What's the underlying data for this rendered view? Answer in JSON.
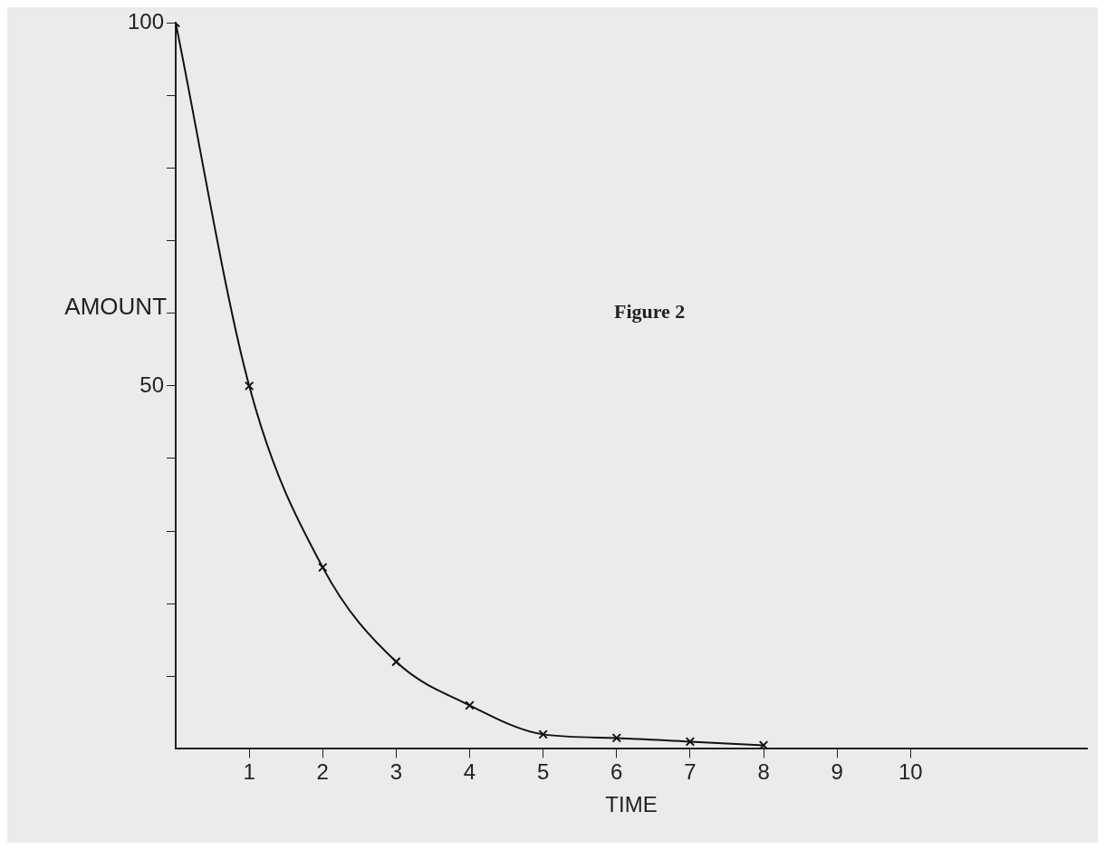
{
  "chart_data": {
    "type": "line",
    "xlabel": "TIME",
    "ylabel": "AMOUNT",
    "annotations": [
      "Figure 2"
    ],
    "x": [
      0,
      1,
      2,
      3,
      4,
      5,
      6,
      7,
      8
    ],
    "series": [
      {
        "color": "#111111",
        "values": [
          100,
          50,
          25,
          12,
          6,
          2,
          1.5,
          1,
          0.5
        ]
      }
    ],
    "xlim": [
      0,
      12.4
    ],
    "ylim": [
      0,
      100
    ],
    "xticks": [
      1,
      2,
      3,
      4,
      5,
      6,
      7,
      8,
      9,
      10
    ],
    "yticks": [
      {
        "value": 10,
        "label": null
      },
      {
        "value": 20,
        "label": null
      },
      {
        "value": 30,
        "label": null
      },
      {
        "value": 40,
        "label": null
      },
      50,
      {
        "value": 60,
        "label": null
      },
      {
        "value": 70,
        "label": null
      },
      {
        "value": 80,
        "label": null
      },
      {
        "value": 90,
        "label": null
      },
      100
    ],
    "grid": false,
    "legend": false,
    "marker": "cross",
    "line_style": "solid"
  }
}
